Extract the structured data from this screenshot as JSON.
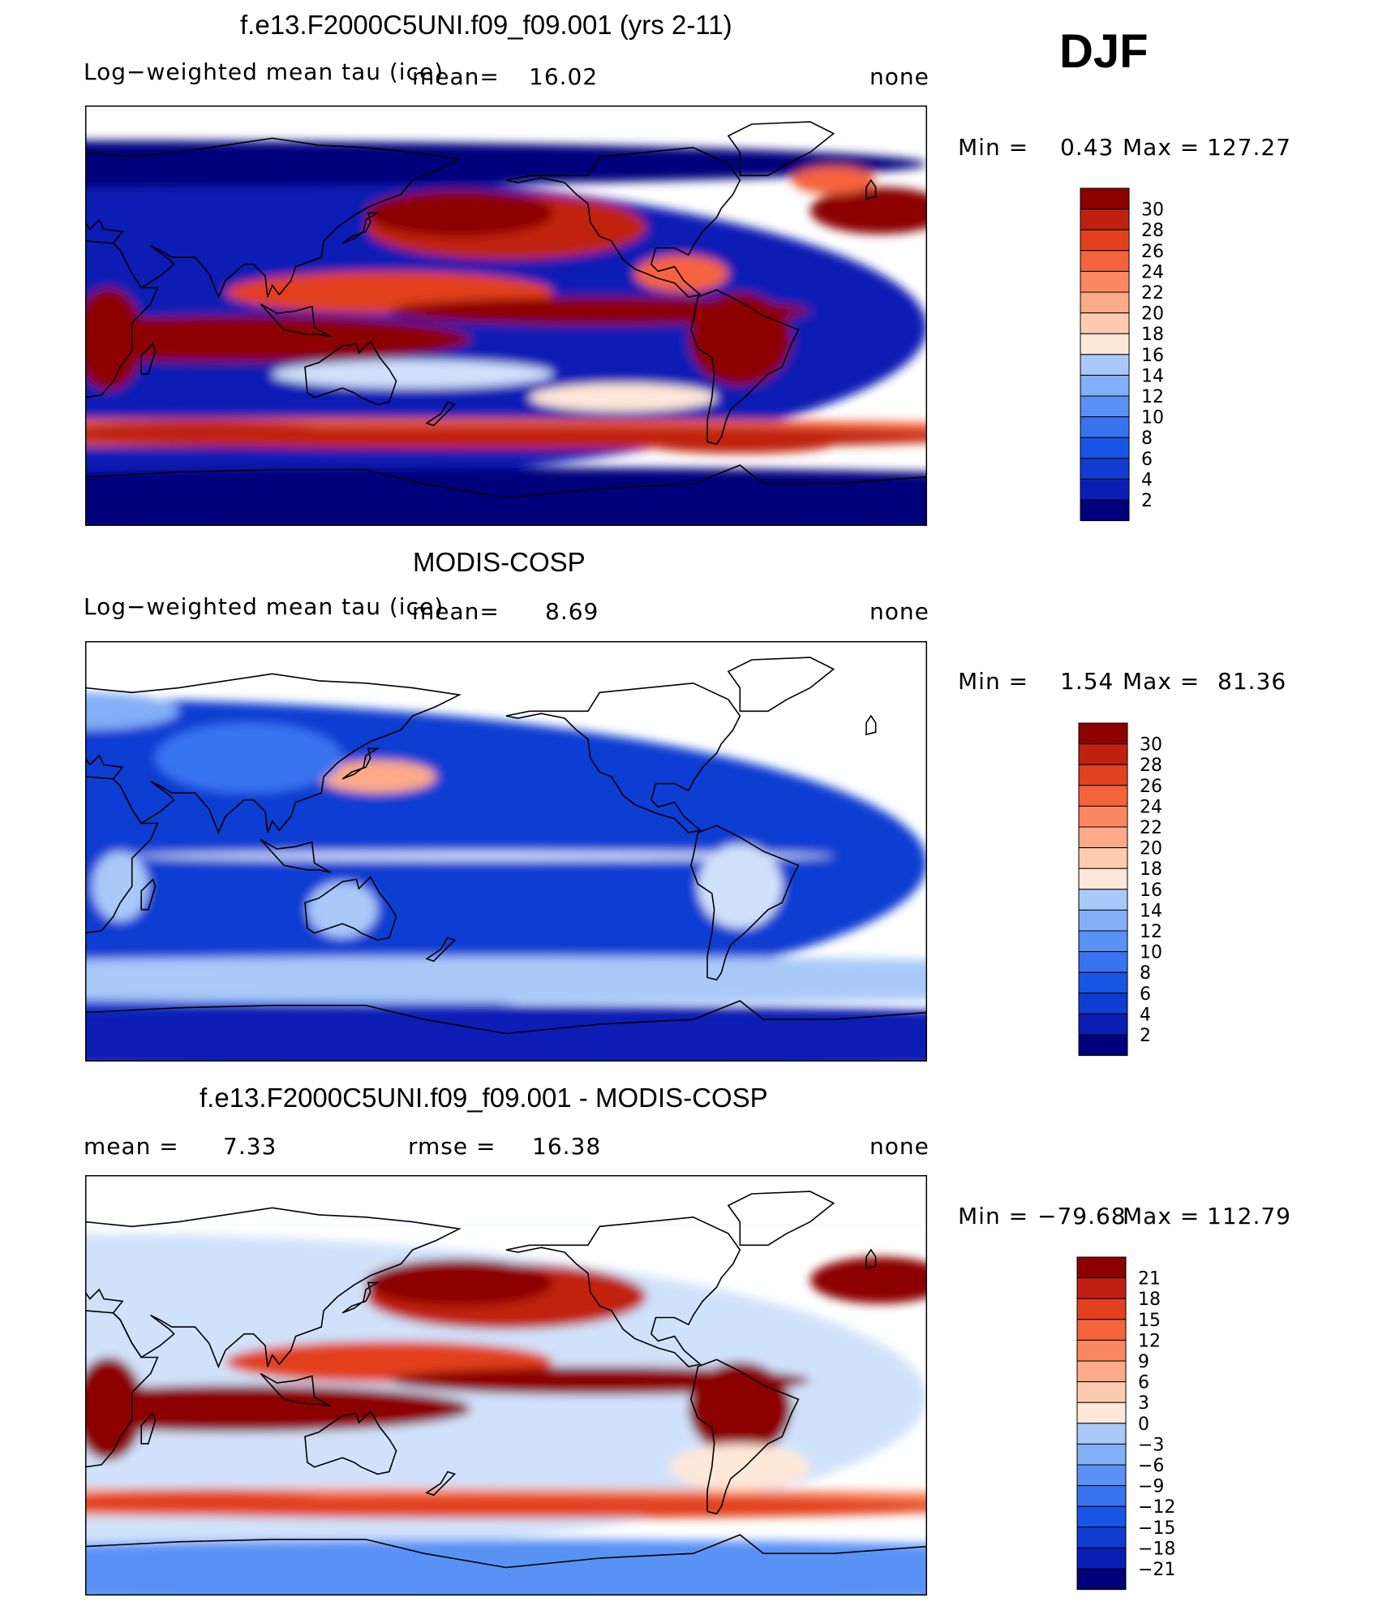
{
  "season": "DJF",
  "colors": {
    "abs_scale": [
      "#00007d",
      "#0a1eb4",
      "#0f3cd2",
      "#1955e6",
      "#3873f0",
      "#5a91f5",
      "#82aff7",
      "#a9c9f9",
      "#d0e2fb",
      "#ffe8d8",
      "#ffcbb0",
      "#fdaa88",
      "#fa8861",
      "#f4643c",
      "#e2401f",
      "#c02010",
      "#8c0000"
    ],
    "diff_scale": [
      "#00007d",
      "#0a1eb4",
      "#0f3cd2",
      "#1955e6",
      "#3873f0",
      "#5a91f5",
      "#82aff7",
      "#a9c9f9",
      "#d0e2fb",
      "#ffe8d8",
      "#ffcbb0",
      "#fdaa88",
      "#fa8861",
      "#f4643c",
      "#e2401f",
      "#c02010",
      "#8c0000"
    ]
  },
  "chart_data": [
    {
      "type": "heatmap",
      "title": "f.e13.F2000C5UNI.f09_f09.001 (yrs 2-11)",
      "left_label": "Log−weighted mean tau (ice)",
      "mean_label": "mean=",
      "mean_value": "16.02",
      "right_label": "none",
      "min_label": "Min =",
      "min_value": "0.43",
      "max_label": "Max =",
      "max_value": "127.27",
      "colorbar_levels": [
        "2",
        "4",
        "6",
        "8",
        "10",
        "12",
        "14",
        "16",
        "18",
        "20",
        "22",
        "24",
        "26",
        "28",
        "30"
      ],
      "regime": "model"
    },
    {
      "type": "heatmap",
      "title": "MODIS-COSP",
      "left_label": "Log−weighted mean tau (ice)",
      "mean_label": "mean=",
      "mean_value": "8.69",
      "right_label": "none",
      "min_label": "Min =",
      "min_value": "1.54",
      "max_label": "Max =",
      "max_value": "81.36",
      "colorbar_levels": [
        "2",
        "4",
        "6",
        "8",
        "10",
        "12",
        "14",
        "16",
        "18",
        "20",
        "22",
        "24",
        "26",
        "28",
        "30"
      ],
      "regime": "obs"
    },
    {
      "type": "heatmap",
      "title": "f.e13.F2000C5UNI.f09_f09.001 - MODIS-COSP",
      "left_label": "mean =",
      "mean_value": "7.33",
      "rmse_label": "rmse =",
      "rmse_value": "16.38",
      "right_label": "none",
      "min_label": "Min =",
      "min_value": "−79.68",
      "max_label": "Max =",
      "max_value": "112.79",
      "colorbar_levels": [
        "−21",
        "−18",
        "−15",
        "−12",
        "−9",
        "−6",
        "−3",
        "0",
        "3",
        "6",
        "9",
        "12",
        "15",
        "18",
        "21"
      ],
      "regime": "diff"
    }
  ]
}
